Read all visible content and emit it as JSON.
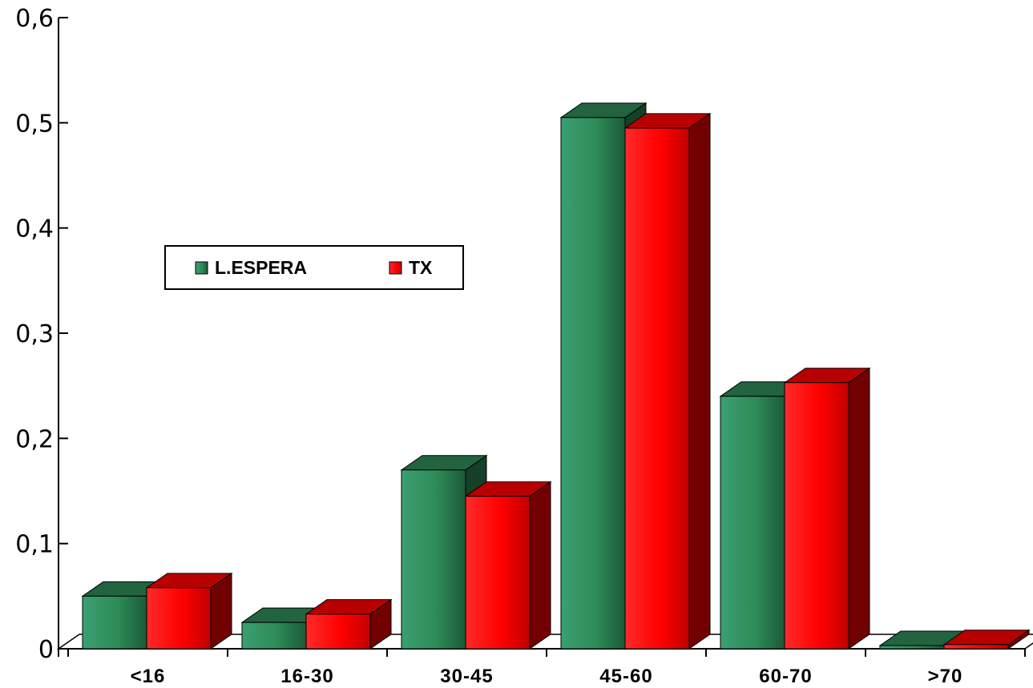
{
  "chart_data": {
    "type": "bar",
    "categories": [
      "<16",
      "16-30",
      "30-45",
      "45-60",
      "60-70",
      ">70"
    ],
    "series": [
      {
        "name": "L.ESPERA",
        "values": [
          0.05,
          0.025,
          0.17,
          0.505,
          0.24,
          0.003
        ],
        "color": "#2e8b57"
      },
      {
        "name": "TX",
        "values": [
          0.058,
          0.033,
          0.145,
          0.495,
          0.253,
          0.004
        ],
        "color": "#ff0000"
      }
    ],
    "ylim": [
      0,
      0.6
    ],
    "yticks": [
      0,
      0.1,
      0.2,
      0.3,
      0.4,
      0.5,
      0.6
    ],
    "ytick_labels": [
      "0",
      "0,1",
      "0,2",
      "0,3",
      "0,4",
      "0,5",
      "0,6"
    ],
    "title": "",
    "xlabel": "",
    "ylabel": "",
    "grid": false,
    "legend": "center-left",
    "style": "3d-bars"
  }
}
